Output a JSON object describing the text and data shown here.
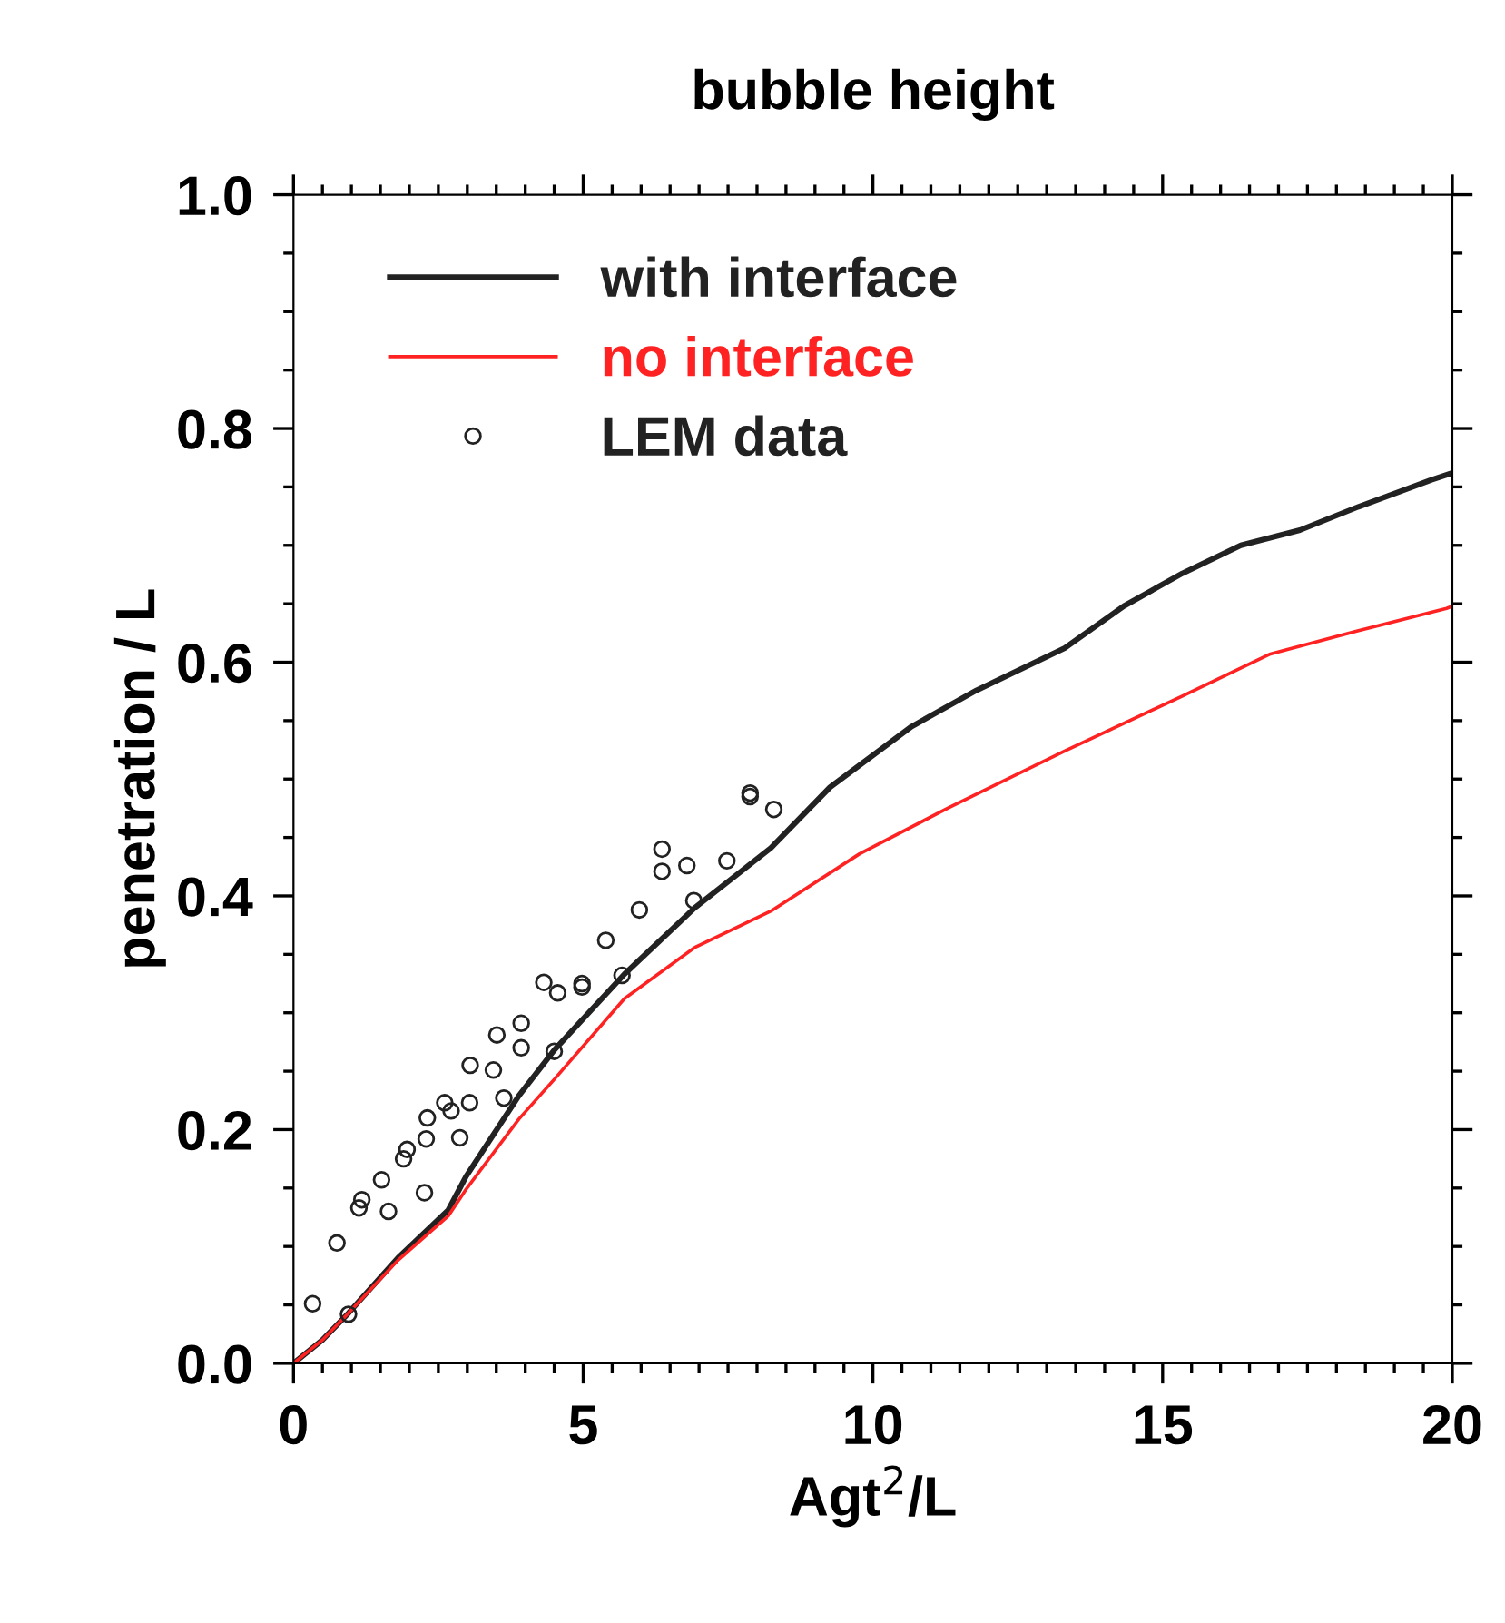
{
  "chart_data": {
    "type": "line",
    "title": "bubble height",
    "xlabel": "Agt$^{2}$/L",
    "ylabel": "penetration / L",
    "xlim": [
      0,
      20
    ],
    "ylim": [
      0,
      1.0
    ],
    "xticks": [
      0,
      5,
      10,
      15,
      20
    ],
    "yticks": [
      {
        "value": 0,
        "label": "0.0"
      },
      0.2,
      0.4,
      0.6,
      0.8,
      {
        "value": 1.0,
        "label": "1.0"
      }
    ],
    "grid": false,
    "legend": "top left",
    "series": [
      {
        "name": "with interface",
        "color": "#222222",
        "marker": "none",
        "line_style": "solid",
        "x": [
          0,
          0.5,
          0.95,
          1.8,
          2.67,
          2.98,
          3.89,
          4.5,
          5.71,
          6.93,
          8.24,
          9.26,
          10.67,
          11.79,
          13.31,
          14.33,
          15.34,
          16.35,
          17.37,
          18.38,
          19.64,
          20
        ],
        "values": [
          0,
          0.02,
          0.043,
          0.09,
          0.131,
          0.16,
          0.229,
          0.268,
          0.333,
          0.39,
          0.441,
          0.493,
          0.545,
          0.576,
          0.612,
          0.648,
          0.676,
          0.7,
          0.713,
          0.733,
          0.756,
          0.762
        ]
      },
      {
        "name": "no interface",
        "color": "#ff2222",
        "marker": "none",
        "line_style": "solid",
        "x": [
          0,
          0.5,
          0.95,
          1.8,
          2.67,
          2.98,
          3.89,
          4.5,
          5.71,
          6.93,
          8.24,
          9.77,
          11.29,
          13.31,
          15.34,
          16.86,
          18.38,
          19.9,
          20
        ],
        "values": [
          0,
          0.02,
          0.043,
          0.088,
          0.126,
          0.149,
          0.209,
          0.243,
          0.312,
          0.356,
          0.387,
          0.436,
          0.475,
          0.524,
          0.571,
          0.607,
          0.627,
          0.646,
          0.648
        ]
      },
      {
        "name": "LEM data",
        "color": "#222222",
        "type": "scatter",
        "marker": "circle",
        "x": [
          0.33,
          0.95,
          0.75,
          1.13,
          1.18,
          1.64,
          1.52,
          1.9,
          1.96,
          2.26,
          2.29,
          2.31,
          2.61,
          2.72,
          2.87,
          3.04,
          3.05,
          3.45,
          3.51,
          3.63,
          3.93,
          3.93,
          4.32,
          4.56,
          4.5,
          4.98,
          4.98,
          5.39,
          5.67,
          5.97,
          6.36,
          6.36,
          6.79,
          6.91,
          7.48,
          7.88,
          7.88,
          8.29
        ],
        "values": [
          0.051,
          0.042,
          0.103,
          0.133,
          0.14,
          0.13,
          0.157,
          0.175,
          0.183,
          0.146,
          0.192,
          0.21,
          0.223,
          0.216,
          0.193,
          0.223,
          0.255,
          0.251,
          0.281,
          0.227,
          0.27,
          0.291,
          0.326,
          0.317,
          0.267,
          0.322,
          0.325,
          0.362,
          0.332,
          0.388,
          0.44,
          0.421,
          0.426,
          0.396,
          0.43,
          0.488,
          0.485,
          0.474
        ]
      }
    ]
  }
}
